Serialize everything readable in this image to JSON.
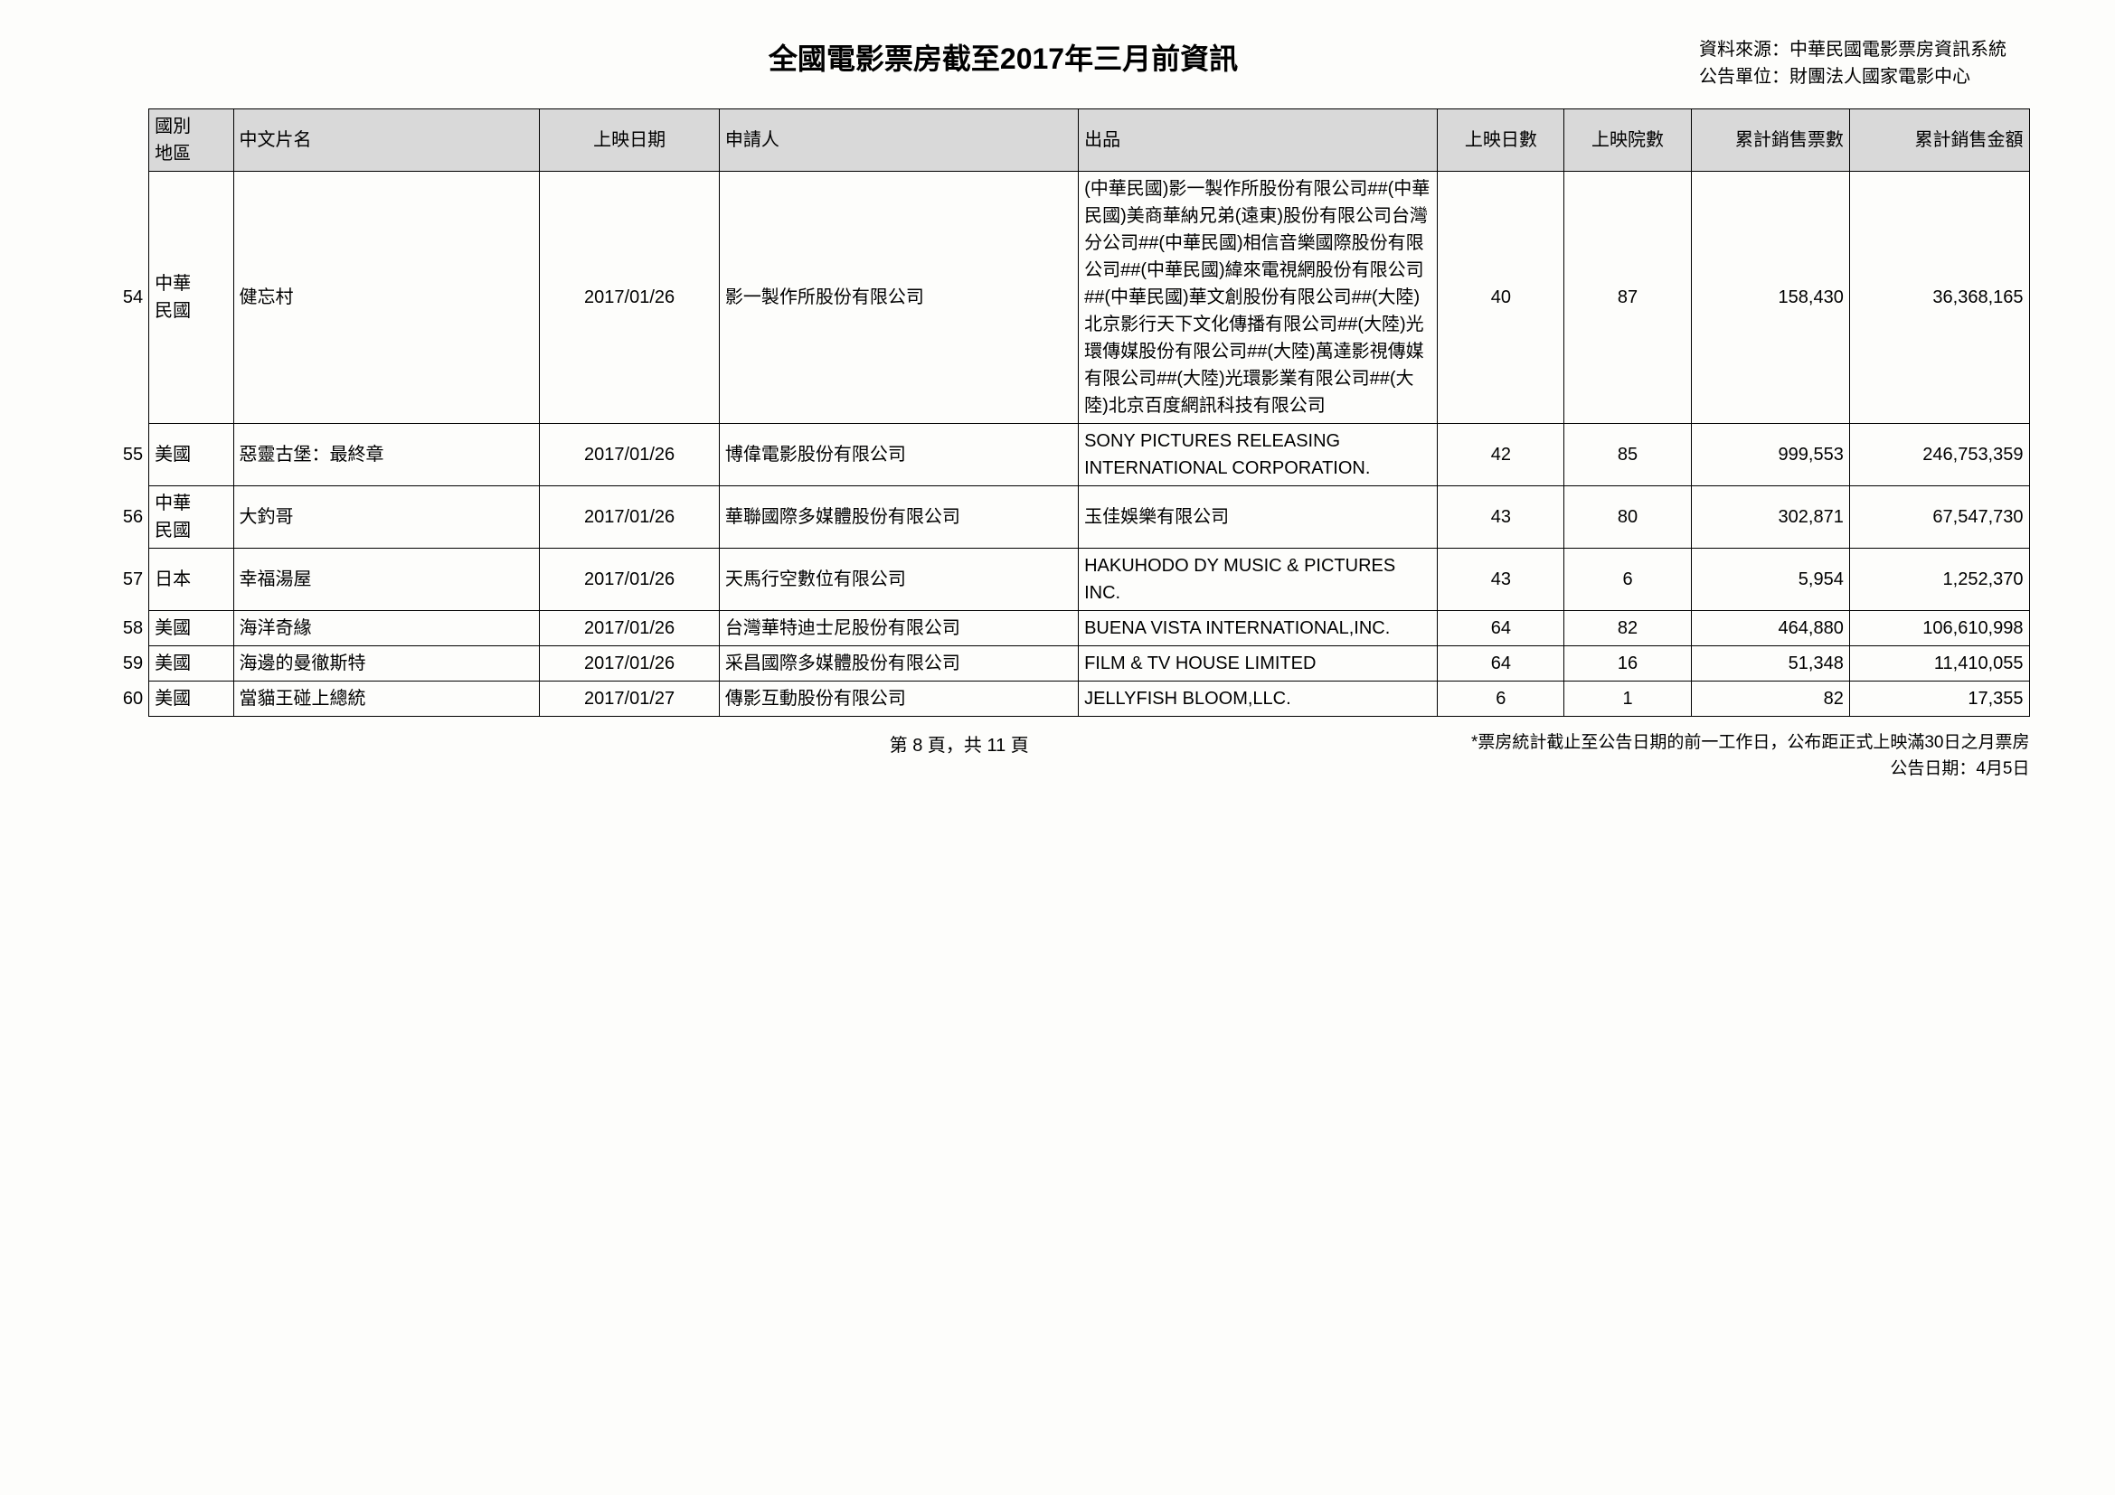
{
  "header": {
    "title": "全國電影票房截至2017年三月前資訊",
    "source_line1": "資料來源：中華民國電影票房資訊系統",
    "source_line2": "公告單位：財團法人國家電影中心"
  },
  "columns": {
    "idx": "",
    "country": "國別\n地區",
    "name": "中文片名",
    "date": "上映日期",
    "applicant": "申請人",
    "producer": "出品",
    "days": "上映日數",
    "theaters": "上映院數",
    "tickets": "累計銷售票數",
    "amount": "累計銷售金額"
  },
  "rows": [
    {
      "idx": "54",
      "country": "中華民國",
      "name": "健忘村",
      "date": "2017/01/26",
      "applicant": "影一製作所股份有限公司",
      "producer": "(中華民國)影一製作所股份有限公司##(中華民國)美商華納兄弟(遠東)股份有限公司台灣分公司##(中華民國)相信音樂國際股份有限公司##(中華民國)緯來電視網股份有限公司##(中華民國)華文創股份有限公司##(大陸)北京影行天下文化傳播有限公司##(大陸)光環傳媒股份有限公司##(大陸)萬達影視傳媒有限公司##(大陸)光環影業有限公司##(大陸)北京百度網訊科技有限公司",
      "days": "40",
      "theaters": "87",
      "tickets": "158,430",
      "amount": "36,368,165"
    },
    {
      "idx": "55",
      "country": "美國",
      "name": "惡靈古堡：最終章",
      "date": "2017/01/26",
      "applicant": "博偉電影股份有限公司",
      "producer": "SONY PICTURES RELEASING INTERNATIONAL CORPORATION.",
      "days": "42",
      "theaters": "85",
      "tickets": "999,553",
      "amount": "246,753,359"
    },
    {
      "idx": "56",
      "country": "中華民國",
      "name": "大釣哥",
      "date": "2017/01/26",
      "applicant": "華聯國際多媒體股份有限公司",
      "producer": "玉佳娛樂有限公司",
      "days": "43",
      "theaters": "80",
      "tickets": "302,871",
      "amount": "67,547,730"
    },
    {
      "idx": "57",
      "country": "日本",
      "name": "幸福湯屋",
      "date": "2017/01/26",
      "applicant": "天馬行空數位有限公司",
      "producer": "HAKUHODO DY MUSIC & PICTURES INC.",
      "days": "43",
      "theaters": "6",
      "tickets": "5,954",
      "amount": "1,252,370"
    },
    {
      "idx": "58",
      "country": "美國",
      "name": "海洋奇緣",
      "date": "2017/01/26",
      "applicant": "台灣華特迪士尼股份有限公司",
      "producer": "BUENA VISTA INTERNATIONAL,INC.",
      "days": "64",
      "theaters": "82",
      "tickets": "464,880",
      "amount": "106,610,998"
    },
    {
      "idx": "59",
      "country": "美國",
      "name": "海邊的曼徹斯特",
      "date": "2017/01/26",
      "applicant": "采昌國際多媒體股份有限公司",
      "producer": "FILM & TV HOUSE LIMITED",
      "days": "64",
      "theaters": "16",
      "tickets": "51,348",
      "amount": "11,410,055"
    },
    {
      "idx": "60",
      "country": "美國",
      "name": "當貓王碰上總統",
      "date": "2017/01/27",
      "applicant": "傳影互動股份有限公司",
      "producer": "JELLYFISH BLOOM,LLC.",
      "days": "6",
      "theaters": "1",
      "tickets": "82",
      "amount": "17,355"
    }
  ],
  "footer": {
    "page": "第 8 頁，共 11 頁",
    "note": "*票房統計截止至公告日期的前一工作日，公布距正式上映滿30日之月票房",
    "announce": "公告日期：4月5日"
  }
}
